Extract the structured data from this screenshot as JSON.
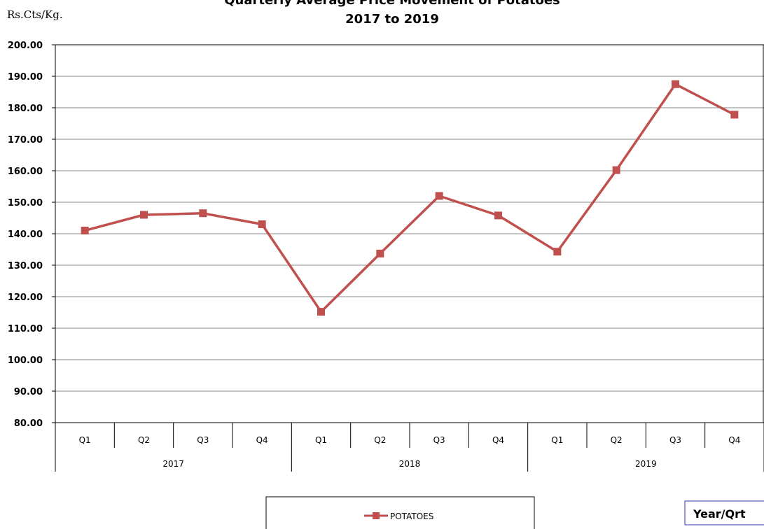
{
  "chart_data": {
    "type": "line",
    "title": "Quarterly Average Price Movement of Potatoes",
    "subtitle": "2017 to 2019",
    "units_label": "Rs.Cts/Kg.",
    "xlabel": "Year/Qrt",
    "ylim": [
      80,
      200
    ],
    "ytick_step": 10,
    "yticks": [
      "80.00",
      "90.00",
      "100.00",
      "110.00",
      "120.00",
      "130.00",
      "140.00",
      "150.00",
      "160.00",
      "170.00",
      "180.00",
      "190.00",
      "200.00"
    ],
    "grid": true,
    "legend_placement": "bottom",
    "categories": [
      "Q1",
      "Q2",
      "Q3",
      "Q4",
      "Q1",
      "Q2",
      "Q3",
      "Q4",
      "Q1",
      "Q2",
      "Q3",
      "Q4"
    ],
    "years": [
      {
        "label": "2017",
        "quarters": 4
      },
      {
        "label": "2018",
        "quarters": 4
      },
      {
        "label": "2019",
        "quarters": 4
      }
    ],
    "series": [
      {
        "name": "POTATOES",
        "color": "#C0504D",
        "values": [
          141.0,
          146.0,
          146.5,
          143.0,
          115.2,
          133.7,
          152.0,
          145.8,
          134.3,
          160.2,
          187.5,
          177.8
        ]
      }
    ]
  }
}
